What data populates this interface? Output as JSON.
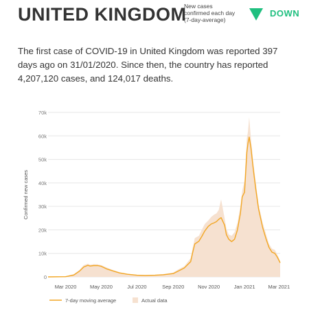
{
  "header": {
    "country": "UNITED KINGDOM",
    "metric_label": "New cases confirmed each day (7-day-average)",
    "trend_icon": "triangle-down-icon",
    "trend": "DOWN",
    "trend_color": "#1fbf7f"
  },
  "summary": "The first case of COVID-19 in United Kingdom was reported 397 days ago on 31/01/2020. Since then, the country has reported 4,207,120 cases, and 124,017 deaths.",
  "colors": {
    "line": "#f2a623",
    "area": "#f6e1d0",
    "grid": "#e6e6e6",
    "text": "#333333"
  },
  "chart_data": {
    "type": "line",
    "ylabel": "Confirmed new cases",
    "ylim": [
      0,
      70000
    ],
    "yticks": [
      0,
      10000,
      20000,
      30000,
      40000,
      50000,
      60000,
      70000
    ],
    "ytick_labels": [
      "0",
      "10k",
      "20k",
      "30k",
      "40k",
      "50k",
      "60k",
      "70k"
    ],
    "xlim": [
      "2020-01-31",
      "2021-03-03"
    ],
    "xticks": [
      "2020-03-01",
      "2020-05-01",
      "2020-07-01",
      "2020-09-01",
      "2020-11-01",
      "2021-01-01",
      "2021-03-01"
    ],
    "xtick_labels": [
      "Mar 2020",
      "May 2020",
      "Jul 2020",
      "Sep 2020",
      "Nov 2020",
      "Jan 2021",
      "Mar 2021"
    ],
    "legend": [
      "7-day moving average",
      "Actual data"
    ],
    "legend_position": "bottom",
    "series": [
      {
        "name": "7-day moving average",
        "style": "line",
        "x": [
          "2020-01-31",
          "2020-03-01",
          "2020-03-15",
          "2020-03-25",
          "2020-04-01",
          "2020-04-08",
          "2020-04-12",
          "2020-04-18",
          "2020-04-25",
          "2020-05-01",
          "2020-05-10",
          "2020-05-20",
          "2020-06-01",
          "2020-06-15",
          "2020-07-01",
          "2020-07-15",
          "2020-08-01",
          "2020-08-15",
          "2020-09-01",
          "2020-09-10",
          "2020-09-20",
          "2020-10-01",
          "2020-10-05",
          "2020-10-08",
          "2020-10-15",
          "2020-10-20",
          "2020-10-25",
          "2020-10-31",
          "2020-11-05",
          "2020-11-10",
          "2020-11-14",
          "2020-11-18",
          "2020-11-22",
          "2020-11-28",
          "2020-12-01",
          "2020-12-05",
          "2020-12-10",
          "2020-12-15",
          "2020-12-20",
          "2020-12-25",
          "2020-12-28",
          "2021-01-01",
          "2021-01-05",
          "2021-01-07",
          "2021-01-09",
          "2021-01-12",
          "2021-01-16",
          "2021-01-20",
          "2021-01-25",
          "2021-02-01",
          "2021-02-07",
          "2021-02-12",
          "2021-02-17",
          "2021-02-22",
          "2021-02-26",
          "2021-03-01",
          "2021-03-03"
        ],
        "y": [
          0,
          100,
          800,
          2500,
          4200,
          4900,
          4600,
          4800,
          4800,
          4500,
          3400,
          2600,
          1700,
          1100,
          700,
          600,
          700,
          900,
          1400,
          2500,
          3800,
          6500,
          11000,
          14000,
          15200,
          17200,
          19500,
          21500,
          22500,
          23000,
          23500,
          24500,
          25200,
          22000,
          18000,
          16000,
          15000,
          16000,
          20000,
          27000,
          34000,
          36000,
          53000,
          57000,
          59500,
          55000,
          46000,
          38000,
          29000,
          21000,
          16000,
          12500,
          10500,
          10000,
          8500,
          7000,
          6000
        ]
      },
      {
        "name": "Actual data",
        "style": "area",
        "x": [
          "2020-01-31",
          "2020-03-01",
          "2020-03-15",
          "2020-03-25",
          "2020-04-01",
          "2020-04-08",
          "2020-04-12",
          "2020-04-18",
          "2020-04-25",
          "2020-05-01",
          "2020-05-10",
          "2020-05-20",
          "2020-06-01",
          "2020-06-15",
          "2020-07-01",
          "2020-07-15",
          "2020-08-01",
          "2020-08-15",
          "2020-09-01",
          "2020-09-10",
          "2020-09-20",
          "2020-10-01",
          "2020-10-05",
          "2020-10-08",
          "2020-10-15",
          "2020-10-20",
          "2020-10-25",
          "2020-10-31",
          "2020-11-05",
          "2020-11-10",
          "2020-11-14",
          "2020-11-18",
          "2020-11-22",
          "2020-11-28",
          "2020-12-01",
          "2020-12-05",
          "2020-12-10",
          "2020-12-15",
          "2020-12-20",
          "2020-12-25",
          "2020-12-28",
          "2021-01-01",
          "2021-01-05",
          "2021-01-07",
          "2021-01-09",
          "2021-01-12",
          "2021-01-16",
          "2021-01-20",
          "2021-01-25",
          "2021-02-01",
          "2021-02-07",
          "2021-02-12",
          "2021-02-17",
          "2021-02-22",
          "2021-02-26",
          "2021-03-01",
          "2021-03-03"
        ],
        "y": [
          0,
          200,
          1200,
          3000,
          5000,
          5600,
          5200,
          5400,
          5300,
          5000,
          4000,
          3000,
          2000,
          1300,
          900,
          800,
          900,
          1200,
          1800,
          3200,
          4500,
          8000,
          13000,
          16500,
          17500,
          20000,
          22500,
          24000,
          25500,
          26500,
          27000,
          28500,
          33000,
          25000,
          20500,
          18000,
          17500,
          19000,
          23000,
          30000,
          36500,
          41000,
          59000,
          62000,
          68000,
          59000,
          49000,
          41000,
          31000,
          23000,
          18000,
          14000,
          12000,
          11500,
          9500,
          8000,
          6500
        ]
      }
    ]
  }
}
